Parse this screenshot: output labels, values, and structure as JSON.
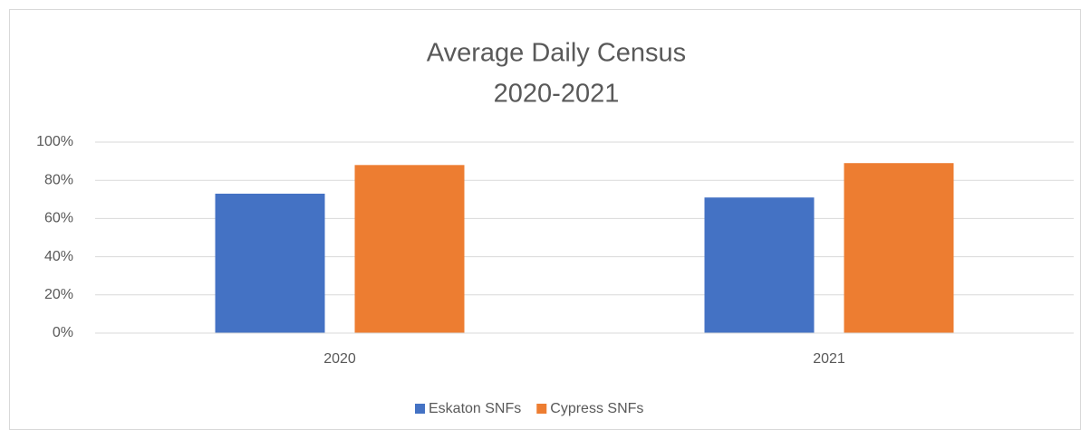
{
  "chart_data": {
    "type": "bar",
    "title": "Average Daily Census",
    "subtitle": "2020-2021",
    "categories": [
      "2020",
      "2021"
    ],
    "series": [
      {
        "name": "Eskaton SNFs",
        "color": "#4472c4",
        "values": [
          73,
          71
        ]
      },
      {
        "name": "Cypress SNFs",
        "color": "#ed7d31",
        "values": [
          88,
          89
        ]
      }
    ],
    "ylim": [
      0,
      100
    ],
    "yticks": [
      {
        "value": 0,
        "label": "0%"
      },
      {
        "value": 20,
        "label": "20%"
      },
      {
        "value": 40,
        "label": "40%"
      },
      {
        "value": 60,
        "label": "60%"
      },
      {
        "value": 80,
        "label": "80%"
      },
      {
        "value": 100,
        "label": "100%"
      }
    ],
    "grid": true,
    "legend": "bottom"
  }
}
